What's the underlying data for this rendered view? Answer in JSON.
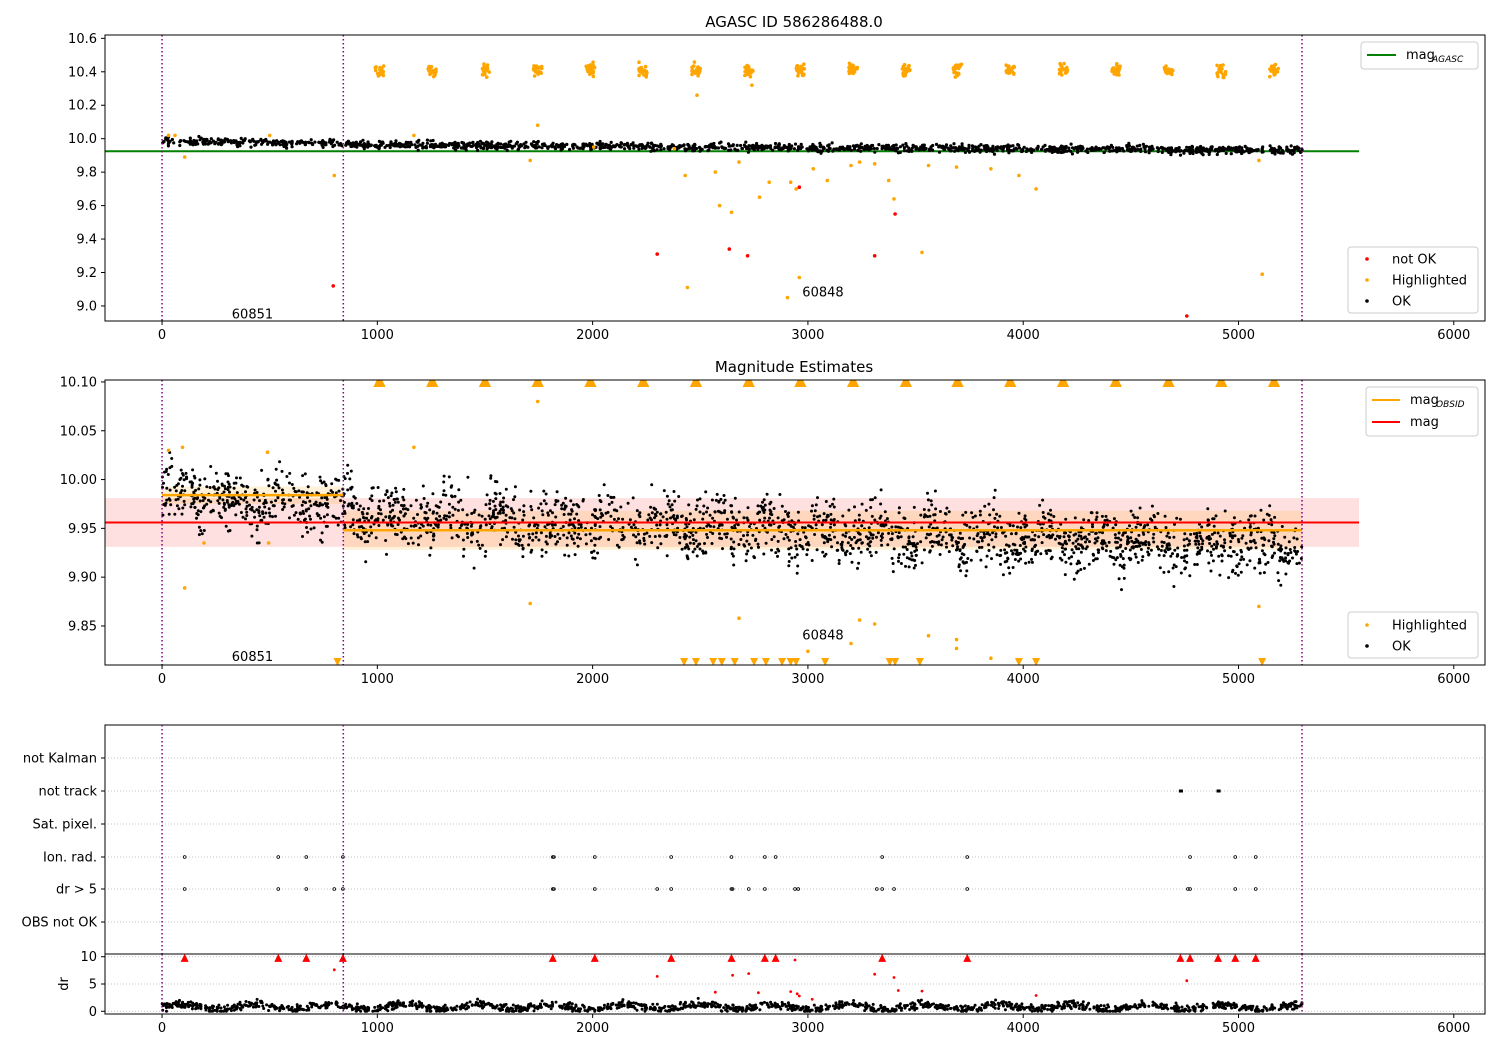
{
  "figure": {
    "title": "AGASC ID 586286488.0"
  },
  "chart_data": [
    {
      "id": "panel1",
      "type": "scatter",
      "title": "AGASC ID 586286488.0",
      "xlabel": "",
      "ylabel": "",
      "xlim": [
        -265,
        6145
      ],
      "ylim": [
        8.91,
        10.62
      ],
      "xticks": [
        0,
        1000,
        2000,
        3000,
        4000,
        5000,
        6000
      ],
      "yticks": [
        9.0,
        9.2,
        9.4,
        9.6,
        9.8,
        10.0,
        10.2,
        10.4,
        10.6
      ],
      "ytick_labels": [
        "9.0",
        "9.2",
        "9.4",
        "9.6",
        "9.8",
        "10.0",
        "10.2",
        "10.4",
        "10.6"
      ],
      "grid": false,
      "vlines": [
        0,
        842,
        5295
      ],
      "mag_agasc": 9.925,
      "mag_agasc_xrange": [
        -265,
        5560
      ],
      "obsid_labels": [
        {
          "text": "60851",
          "x": 420,
          "y": 8.95
        },
        {
          "text": "60848",
          "x": 3070,
          "y": 9.08
        }
      ],
      "ok_trend": {
        "x": [
          0,
          1000,
          2000,
          3000,
          4000,
          5300
        ],
        "y": [
          9.985,
          9.965,
          9.955,
          9.945,
          9.94,
          9.93
        ]
      },
      "highlighted_clusters_y": 10.41,
      "cluster_x": [
        1010,
        1255,
        1500,
        1745,
        1990,
        2235,
        2480,
        2725,
        2965,
        3210,
        3455,
        3695,
        3940,
        4185,
        4430,
        4675,
        4920,
        5165
      ],
      "highlighted_outliers": [
        {
          "x": 105,
          "y": 9.89
        },
        {
          "x": 800,
          "y": 9.78
        },
        {
          "x": 1745,
          "y": 10.08
        },
        {
          "x": 1710,
          "y": 9.87
        },
        {
          "x": 2430,
          "y": 9.78
        },
        {
          "x": 2440,
          "y": 9.11
        },
        {
          "x": 2485,
          "y": 10.26
        },
        {
          "x": 2570,
          "y": 9.8
        },
        {
          "x": 2590,
          "y": 9.6
        },
        {
          "x": 2645,
          "y": 9.56
        },
        {
          "x": 2680,
          "y": 9.86
        },
        {
          "x": 2740,
          "y": 10.32
        },
        {
          "x": 2775,
          "y": 9.65
        },
        {
          "x": 2820,
          "y": 9.74
        },
        {
          "x": 2905,
          "y": 9.05
        },
        {
          "x": 2920,
          "y": 9.74
        },
        {
          "x": 2945,
          "y": 9.7
        },
        {
          "x": 2960,
          "y": 9.17
        },
        {
          "x": 3025,
          "y": 9.82
        },
        {
          "x": 3090,
          "y": 9.75
        },
        {
          "x": 3200,
          "y": 9.84
        },
        {
          "x": 3240,
          "y": 9.86
        },
        {
          "x": 3310,
          "y": 9.85
        },
        {
          "x": 3375,
          "y": 9.75
        },
        {
          "x": 3400,
          "y": 9.64
        },
        {
          "x": 3530,
          "y": 9.32
        },
        {
          "x": 3560,
          "y": 9.84
        },
        {
          "x": 3690,
          "y": 9.83
        },
        {
          "x": 3850,
          "y": 9.82
        },
        {
          "x": 3980,
          "y": 9.78
        },
        {
          "x": 4060,
          "y": 9.7
        },
        {
          "x": 5095,
          "y": 9.87
        },
        {
          "x": 5110,
          "y": 9.19
        },
        {
          "x": 30,
          "y": 10.02
        },
        {
          "x": 60,
          "y": 10.02
        },
        {
          "x": 500,
          "y": 10.02
        },
        {
          "x": 1170,
          "y": 10.02
        },
        {
          "x": 2005,
          "y": 9.95
        },
        {
          "x": 2380,
          "y": 9.94
        }
      ],
      "notok_points": [
        {
          "x": 795,
          "y": 9.12
        },
        {
          "x": 2300,
          "y": 9.31
        },
        {
          "x": 2635,
          "y": 9.34
        },
        {
          "x": 2720,
          "y": 9.3
        },
        {
          "x": 2960,
          "y": 9.71
        },
        {
          "x": 3310,
          "y": 9.3
        },
        {
          "x": 3405,
          "y": 9.55
        },
        {
          "x": 4760,
          "y": 8.94
        },
        {
          "x": 2940,
          "y": 8.9
        }
      ],
      "legend_top": [
        {
          "label": "mag",
          "sub": "AGASC",
          "color": "#008000"
        }
      ],
      "legend_bottom": [
        {
          "label": "not OK",
          "color": "#ff0000"
        },
        {
          "label": "Highlighted",
          "color": "#ffa500"
        },
        {
          "label": "OK",
          "color": "#000000"
        }
      ]
    },
    {
      "id": "panel2",
      "type": "scatter",
      "title": "Magnitude Estimates",
      "xlabel": "",
      "ylabel": "",
      "xlim": [
        -265,
        6145
      ],
      "ylim": [
        9.81,
        10.102
      ],
      "xticks": [
        0,
        1000,
        2000,
        3000,
        4000,
        5000,
        6000
      ],
      "yticks": [
        9.85,
        9.9,
        9.95,
        10.0,
        10.05,
        10.1
      ],
      "ytick_labels": [
        "9.85",
        "9.90",
        "9.95",
        "10.00",
        "10.05",
        "10.10"
      ],
      "grid": false,
      "vlines": [
        0,
        842,
        5295
      ],
      "mag": 9.956,
      "mag_band": [
        9.931,
        9.981
      ],
      "mag_xrange": [
        -265,
        5560
      ],
      "mag_obsid": [
        {
          "x0": 0,
          "x1": 842,
          "y": 9.984,
          "band": [
            9.975,
            9.993
          ]
        },
        {
          "x0": 842,
          "x1": 5295,
          "y": 9.948,
          "band": [
            9.928,
            9.968
          ]
        }
      ],
      "obsid_labels": [
        {
          "text": "60851",
          "x": 420,
          "y": 9.818
        },
        {
          "text": "60848",
          "x": 3070,
          "y": 9.84
        }
      ],
      "ok_trend": {
        "x": [
          0,
          842,
          1000,
          2000,
          3000,
          4000,
          5300
        ],
        "y": [
          9.985,
          9.975,
          9.962,
          9.955,
          9.948,
          9.94,
          9.93
        ]
      },
      "cluster_x": [
        1010,
        1255,
        1500,
        1745,
        1990,
        2235,
        2480,
        2725,
        2965,
        3210,
        3455,
        3695,
        3940,
        4185,
        4430,
        4675,
        4920,
        5165
      ],
      "bottom_triangles_x": [
        815,
        2425,
        2480,
        2560,
        2600,
        2660,
        2750,
        2805,
        2880,
        2920,
        2945,
        3080,
        3380,
        3405,
        3520,
        3980,
        4060,
        5110
      ],
      "highlighted_outliers": [
        {
          "x": 30,
          "y": 10.03
        },
        {
          "x": 95,
          "y": 10.033
        },
        {
          "x": 105,
          "y": 9.889
        },
        {
          "x": 195,
          "y": 9.935
        },
        {
          "x": 490,
          "y": 10.028
        },
        {
          "x": 495,
          "y": 9.935
        },
        {
          "x": 1170,
          "y": 10.033
        },
        {
          "x": 1710,
          "y": 9.873
        },
        {
          "x": 1745,
          "y": 10.08
        },
        {
          "x": 2680,
          "y": 9.858
        },
        {
          "x": 3000,
          "y": 9.824
        },
        {
          "x": 3200,
          "y": 9.832
        },
        {
          "x": 3240,
          "y": 9.856
        },
        {
          "x": 3310,
          "y": 9.852
        },
        {
          "x": 3560,
          "y": 9.84
        },
        {
          "x": 3690,
          "y": 9.836
        },
        {
          "x": 3690,
          "y": 9.827
        },
        {
          "x": 3850,
          "y": 9.817
        },
        {
          "x": 5095,
          "y": 9.87
        }
      ],
      "legend_top": [
        {
          "label": "mag",
          "sub": "OBSID",
          "color": "#ffa500"
        },
        {
          "label": "mag",
          "sub": "",
          "color": "#ff0000"
        }
      ],
      "legend_bottom": [
        {
          "label": "Highlighted",
          "color": "#ffa500"
        },
        {
          "label": "OK",
          "color": "#000000"
        }
      ]
    },
    {
      "id": "panel3",
      "type": "scatter",
      "title": "",
      "xlabel": "",
      "ylabel": "",
      "xlim": [
        -265,
        6145
      ],
      "categories": [
        "not Kalman",
        "not track",
        "Sat. pixel.",
        "Ion. rad.",
        "dr > 5",
        "OBS not OK"
      ],
      "grid": true,
      "vlines": [
        0,
        842,
        5295
      ],
      "flag_points": {
        "not track": [
          4730,
          4735,
          4905,
          4910
        ],
        "Ion. rad.": [
          105,
          540,
          670,
          840,
          1815,
          1820,
          2010,
          2365,
          2645,
          2800,
          2850,
          3345,
          3740,
          4775,
          4985,
          5080
        ],
        "dr > 5": [
          105,
          540,
          670,
          800,
          840,
          1815,
          1820,
          2010,
          2300,
          2365,
          2645,
          2650,
          2725,
          2800,
          2940,
          2955,
          3320,
          3345,
          3400,
          3740,
          4765,
          4775,
          4985,
          5080
        ]
      }
    },
    {
      "id": "panel4",
      "type": "scatter",
      "title": "",
      "xlabel": "",
      "ylabel": "dr",
      "xlim": [
        -265,
        6145
      ],
      "ylim": [
        -0.5,
        10.5
      ],
      "xticks": [
        0,
        1000,
        2000,
        3000,
        4000,
        5000,
        6000
      ],
      "yticks": [
        0,
        5,
        10
      ],
      "ytick_labels": [
        "0",
        "5",
        "10"
      ],
      "grid": true,
      "vlines": [
        0,
        842,
        5295
      ],
      "dr_baseline": 0.8,
      "dr_red_points": [
        {
          "x": 105,
          "y": 9.8
        },
        {
          "x": 540,
          "y": 9.8
        },
        {
          "x": 670,
          "y": 9.8
        },
        {
          "x": 800,
          "y": 7.6
        },
        {
          "x": 840,
          "y": 9.8
        },
        {
          "x": 1815,
          "y": 9.8
        },
        {
          "x": 2010,
          "y": 9.8
        },
        {
          "x": 2300,
          "y": 6.4
        },
        {
          "x": 2365,
          "y": 9.8
        },
        {
          "x": 2570,
          "y": 3.5
        },
        {
          "x": 2645,
          "y": 9.8
        },
        {
          "x": 2650,
          "y": 6.6
        },
        {
          "x": 2725,
          "y": 6.9
        },
        {
          "x": 2770,
          "y": 3.4
        },
        {
          "x": 2800,
          "y": 9.8
        },
        {
          "x": 2850,
          "y": 9.8
        },
        {
          "x": 2920,
          "y": 3.6
        },
        {
          "x": 2940,
          "y": 9.4
        },
        {
          "x": 2950,
          "y": 3.2
        },
        {
          "x": 2960,
          "y": 2.8
        },
        {
          "x": 3020,
          "y": 2.2
        },
        {
          "x": 3310,
          "y": 6.8
        },
        {
          "x": 3345,
          "y": 9.8
        },
        {
          "x": 3400,
          "y": 6.2
        },
        {
          "x": 3420,
          "y": 3.8
        },
        {
          "x": 3530,
          "y": 3.7
        },
        {
          "x": 3740,
          "y": 9.8
        },
        {
          "x": 4060,
          "y": 2.9
        },
        {
          "x": 4730,
          "y": 9.8
        },
        {
          "x": 4760,
          "y": 5.6
        },
        {
          "x": 4775,
          "y": 9.8
        },
        {
          "x": 4905,
          "y": 9.8
        },
        {
          "x": 4985,
          "y": 9.8
        },
        {
          "x": 5080,
          "y": 9.8
        }
      ]
    }
  ]
}
